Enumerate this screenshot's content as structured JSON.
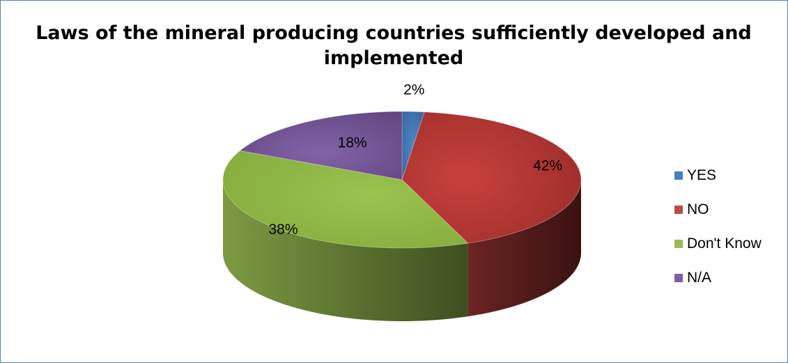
{
  "chart_data": {
    "type": "pie",
    "title": "Laws of the mineral producing countries sufficiently developed and implemented",
    "categories": [
      "YES",
      "NO",
      "Don't Know",
      "N/A"
    ],
    "values": [
      2,
      42,
      38,
      18
    ],
    "data_labels": [
      "2%",
      "42%",
      "38%",
      "18%"
    ],
    "colors": [
      "#4a7ebb",
      "#be4b48",
      "#98b954",
      "#7d60a0"
    ],
    "legend_position": "right",
    "style": "3D"
  }
}
